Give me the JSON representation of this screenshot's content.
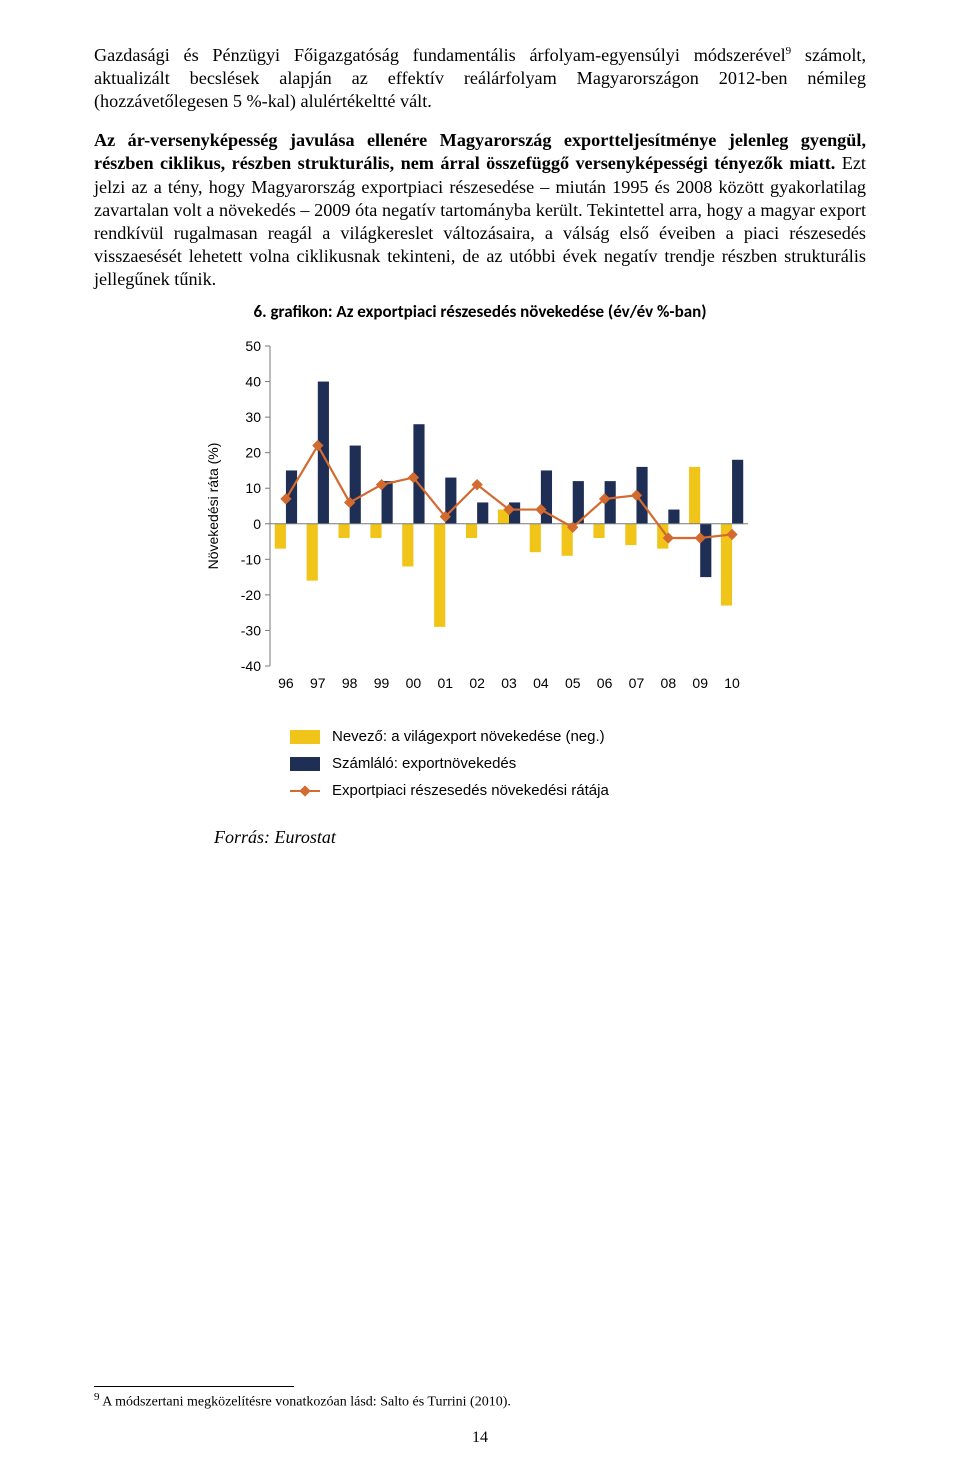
{
  "paragraphs": {
    "p1_a": "Gazdasági és Pénzügyi Főigazgatóság fundamentális árfolyam-egyensúlyi módszerével",
    "p1_sup": "9",
    "p1_b": " számolt, aktualizált becslések alapján az effektív reálárfolyam Magyarországon 2012-ben némileg (hozzávetőlegesen 5 %-kal) alulértékeltté vált.",
    "p2_bold": "Az ár-versenyképesség javulása ellenére Magyarország exportteljesítménye jelenleg gyengül, részben ciklikus, részben strukturális, nem árral összefüggő versenyképességi tényezők miatt.",
    "p2_rest": " Ezt jelzi az a tény, hogy Magyarország exportpiaci részesedése – miután 1995 és 2008 között gyakorlatilag zavartalan volt a növekedés – 2009 óta negatív tartományba került. Tekintettel arra, hogy a magyar export rendkívül rugalmasan reagál a világkereslet változásaira, a válság első éveiben a piaci részesedés visszaesését lehetett volna ciklikusnak tekinteni, de az utóbbi évek negatív trendje részben strukturális jellegűnek tűnik."
  },
  "chart": {
    "title": "6. grafikon: Az exportpiaci részesedés növekedése (év/év %-ban)",
    "type": "bar+line",
    "ylabel": "Növekedési ráta (%)",
    "ylim": [
      -40,
      50
    ],
    "ytick_step": 10,
    "categories": [
      "96",
      "97",
      "98",
      "99",
      "00",
      "01",
      "02",
      "03",
      "04",
      "05",
      "06",
      "07",
      "08",
      "09",
      "10"
    ],
    "series_yellow": {
      "label": "Nevező: a világexport növekedése (neg.)",
      "color": "#f0c419",
      "values": [
        -7,
        -16,
        -4,
        -4,
        -12,
        -29,
        -4,
        4,
        -8,
        -9,
        -4,
        -6,
        -7,
        16,
        -23
      ]
    },
    "series_navy": {
      "label": "Számláló: exportnövekedés",
      "color": "#1f2e54",
      "values": [
        15,
        40,
        22,
        12,
        28,
        13,
        6,
        6,
        15,
        12,
        12,
        16,
        4,
        -15,
        18
      ]
    },
    "series_line": {
      "label": "Exportpiaci részesedés növekedési rátája",
      "color": "#d36a2f",
      "values": [
        7,
        22,
        6,
        11,
        13,
        2,
        11,
        4,
        4,
        -1,
        7,
        8,
        -4,
        -4,
        -3
      ]
    },
    "label_fontsize": 14,
    "background_color": "#ffffff",
    "axis_color": "#7a7a7a",
    "bar_group_width": 0.7
  },
  "legend": {
    "items": [
      {
        "type": "swatch",
        "color": "#f0c419",
        "label": "Nevező: a világexport növekedése (neg.)"
      },
      {
        "type": "swatch",
        "color": "#1f2e54",
        "label": "Számláló: exportnövekedés"
      },
      {
        "type": "line",
        "color": "#d36a2f",
        "label": "Exportpiaci részesedés növekedési rátája"
      }
    ]
  },
  "source": "Forrás: Eurostat",
  "footnote": {
    "num": "9",
    "text": " A módszertani megközelítésre vonatkozóan lásd: Salto és Turrini (2010)."
  },
  "page_number": "14"
}
